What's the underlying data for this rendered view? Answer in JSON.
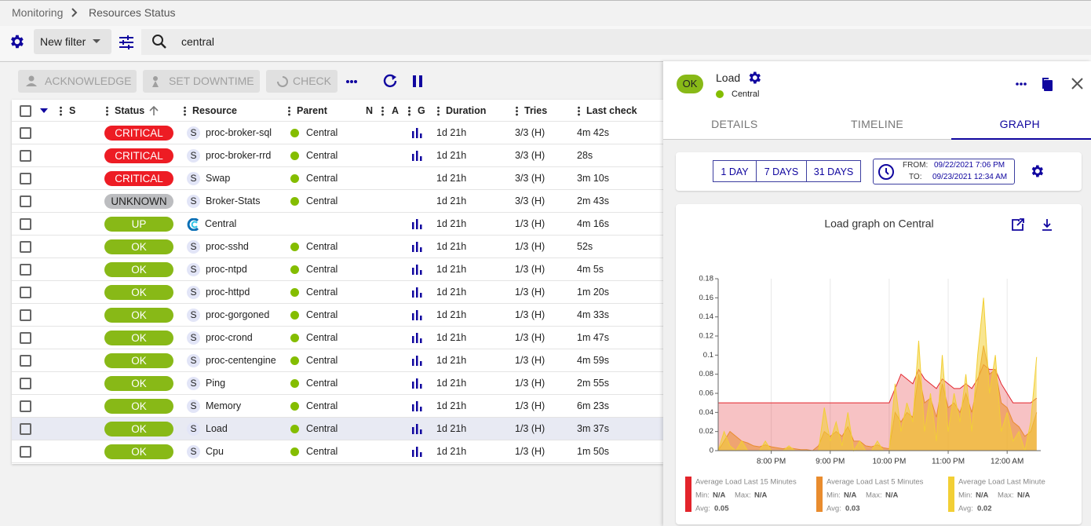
{
  "breadcrumb": [
    "Monitoring",
    "Resources Status"
  ],
  "filter": {
    "name": "New filter",
    "search": "central"
  },
  "actions": [
    "ACKNOWLEDGE",
    "SET DOWNTIME",
    "CHECK"
  ],
  "table": {
    "columns": [
      "S",
      "Status",
      "Resource",
      "Parent",
      "N",
      "A",
      "G",
      "Duration",
      "Tries",
      "Last check"
    ],
    "rows": [
      {
        "status": "CRITICAL",
        "icon": "S",
        "resource": "proc-broker-sql",
        "parent": "Central",
        "graph": true,
        "duration": "1d 21h",
        "tries": "3/3 (H)",
        "last_check": "4m 42s"
      },
      {
        "status": "CRITICAL",
        "icon": "S",
        "resource": "proc-broker-rrd",
        "parent": "Central",
        "graph": true,
        "duration": "1d 21h",
        "tries": "3/3 (H)",
        "last_check": "28s"
      },
      {
        "status": "CRITICAL",
        "icon": "S",
        "resource": "Swap",
        "parent": "Central",
        "graph": false,
        "duration": "1d 21h",
        "tries": "3/3 (H)",
        "last_check": "3m 10s"
      },
      {
        "status": "UNKNOWN",
        "icon": "S",
        "resource": "Broker-Stats",
        "parent": "Central",
        "graph": false,
        "duration": "1d 21h",
        "tries": "3/3 (H)",
        "last_check": "2m 43s"
      },
      {
        "status": "UP",
        "resource": "Central",
        "graph": true,
        "duration": "1d 21h",
        "tries": "1/3 (H)",
        "last_check": "4m 16s"
      },
      {
        "status": "OK",
        "icon": "S",
        "resource": "proc-sshd",
        "parent": "Central",
        "graph": true,
        "duration": "1d 21h",
        "tries": "1/3 (H)",
        "last_check": "52s"
      },
      {
        "status": "OK",
        "icon": "S",
        "resource": "proc-ntpd",
        "parent": "Central",
        "graph": true,
        "duration": "1d 21h",
        "tries": "1/3 (H)",
        "last_check": "4m 5s"
      },
      {
        "status": "OK",
        "icon": "S",
        "resource": "proc-httpd",
        "parent": "Central",
        "graph": true,
        "duration": "1d 21h",
        "tries": "1/3 (H)",
        "last_check": "1m 20s"
      },
      {
        "status": "OK",
        "icon": "S",
        "resource": "proc-gorgoned",
        "parent": "Central",
        "graph": true,
        "duration": "1d 21h",
        "tries": "1/3 (H)",
        "last_check": "4m 33s"
      },
      {
        "status": "OK",
        "icon": "S",
        "resource": "proc-crond",
        "parent": "Central",
        "graph": true,
        "duration": "1d 21h",
        "tries": "1/3 (H)",
        "last_check": "1m 47s"
      },
      {
        "status": "OK",
        "icon": "S",
        "resource": "proc-centengine",
        "parent": "Central",
        "graph": true,
        "duration": "1d 21h",
        "tries": "1/3 (H)",
        "last_check": "4m 59s"
      },
      {
        "status": "OK",
        "icon": "S",
        "resource": "Ping",
        "parent": "Central",
        "graph": true,
        "duration": "1d 21h",
        "tries": "1/3 (H)",
        "last_check": "2m 55s"
      },
      {
        "status": "OK",
        "icon": "S",
        "resource": "Memory",
        "parent": "Central",
        "graph": true,
        "duration": "1d 21h",
        "tries": "1/3 (H)",
        "last_check": "6m 23s"
      },
      {
        "status": "OK",
        "icon": "S",
        "resource": "Load",
        "parent": "Central",
        "graph": true,
        "duration": "1d 21h",
        "tries": "1/3 (H)",
        "last_check": "3m 37s"
      },
      {
        "status": "OK",
        "icon": "S",
        "resource": "Cpu",
        "parent": "Central",
        "graph": true,
        "duration": "1d 21h",
        "tries": "1/3 (H)",
        "last_check": "1m 50s"
      }
    ]
  },
  "panel": {
    "status": "OK",
    "name": "Load",
    "parent": "Central",
    "tabs": [
      "DETAILS",
      "TIMELINE",
      "GRAPH"
    ],
    "periods": [
      "1 DAY",
      "7 DAYS",
      "31 DAYS"
    ],
    "from_label": "FROM:",
    "from": "09/22/2021 7:06 PM",
    "to_label": "TO:",
    "to": "09/23/2021 12:34 AM"
  },
  "chart_data": {
    "type": "area",
    "title": "Load graph on Central",
    "x": [
      19.1,
      19.2,
      19.3,
      19.4,
      19.5,
      19.6,
      19.7,
      19.8,
      19.9,
      20.0,
      20.1,
      20.2,
      20.3,
      20.4,
      20.5,
      20.6,
      20.7,
      20.8,
      20.9,
      21.0,
      21.1,
      21.2,
      21.3,
      21.4,
      21.5,
      21.6,
      21.7,
      21.8,
      21.9,
      22.0,
      22.1,
      22.2,
      22.3,
      22.4,
      22.5,
      22.6,
      22.7,
      22.8,
      22.9,
      23.0,
      23.1,
      23.2,
      23.3,
      23.4,
      23.5,
      23.6,
      23.7,
      23.8,
      23.9,
      24.0,
      24.1,
      24.2,
      24.3,
      24.4,
      24.5
    ],
    "xlim": [
      19.1,
      24.57
    ],
    "xticks": [
      {
        "value": 20,
        "label": "8:00 PM"
      },
      {
        "value": 21,
        "label": "9:00 PM"
      },
      {
        "value": 22,
        "label": "10:00 PM"
      },
      {
        "value": 23,
        "label": "11:00 PM"
      },
      {
        "value": 24,
        "label": "12:00 AM"
      }
    ],
    "ylim": [
      0,
      0.18
    ],
    "yticks": [
      0,
      0.02,
      0.04,
      0.06,
      0.08,
      0.1,
      0.12,
      0.14,
      0.16,
      0.18
    ],
    "xgrid": true,
    "legend_labels": {
      "min": "Min:",
      "max": "Max:",
      "avg": "Avg:"
    },
    "series": [
      {
        "name": "Average Load Last 15 Minutes",
        "color": "#e3242b",
        "min": "N/A",
        "max": "N/A",
        "avg": 0.05,
        "values": [
          0.05,
          0.05,
          0.05,
          0.05,
          0.05,
          0.05,
          0.05,
          0.05,
          0.05,
          0.05,
          0.05,
          0.05,
          0.05,
          0.05,
          0.05,
          0.05,
          0.05,
          0.05,
          0.05,
          0.05,
          0.05,
          0.05,
          0.05,
          0.05,
          0.05,
          0.05,
          0.05,
          0.05,
          0.05,
          0.05,
          0.065,
          0.08,
          0.075,
          0.07,
          0.085,
          0.075,
          0.07,
          0.065,
          0.075,
          0.07,
          0.065,
          0.065,
          0.07,
          0.065,
          0.075,
          0.09,
          0.085,
          0.085,
          0.07,
          0.06,
          0.05,
          0.05,
          0.05,
          0.05,
          0.055
        ]
      },
      {
        "name": "Average Load Last 5 Minutes",
        "color": "#e98c2e",
        "min": "N/A",
        "max": "N/A",
        "avg": 0.03,
        "values": [
          0,
          0.01,
          0.02,
          0.015,
          0.01,
          0.008,
          0.005,
          0.004,
          0.006,
          0.004,
          0.003,
          0.002,
          0.003,
          0.002,
          0.001,
          0.001,
          0,
          0.005,
          0.02,
          0.015,
          0.02,
          0.015,
          0.025,
          0.01,
          0.01,
          0.005,
          0.004,
          0.006,
          0.003,
          0.002,
          0.04,
          0.03,
          0.04,
          0.035,
          0.08,
          0.05,
          0.055,
          0.035,
          0.07,
          0.045,
          0.05,
          0.04,
          0.06,
          0.04,
          0.07,
          0.11,
          0.08,
          0.085,
          0.05,
          0.045,
          0.03,
          0.025,
          0.015,
          0.02,
          0.04
        ]
      },
      {
        "name": "Average Load Last Minute",
        "color": "#f2cf35",
        "min": "N/A",
        "max": "N/A",
        "avg": 0.02,
        "values": [
          0,
          0.02,
          0.005,
          0,
          0.01,
          0,
          0,
          0,
          0.01,
          0,
          0,
          0,
          0.005,
          0,
          0,
          0,
          0,
          0,
          0.045,
          0.01,
          0.03,
          0.005,
          0.04,
          0,
          0.01,
          0,
          0,
          0.01,
          0,
          0,
          0.07,
          0.02,
          0.05,
          0.03,
          0.115,
          0.02,
          0.06,
          0.01,
          0.1,
          0.02,
          0.06,
          0.03,
          0.08,
          0.02,
          0.1,
          0.16,
          0.06,
          0.1,
          0.02,
          0.04,
          0.01,
          0.02,
          0,
          0.03,
          0.098
        ]
      }
    ]
  }
}
